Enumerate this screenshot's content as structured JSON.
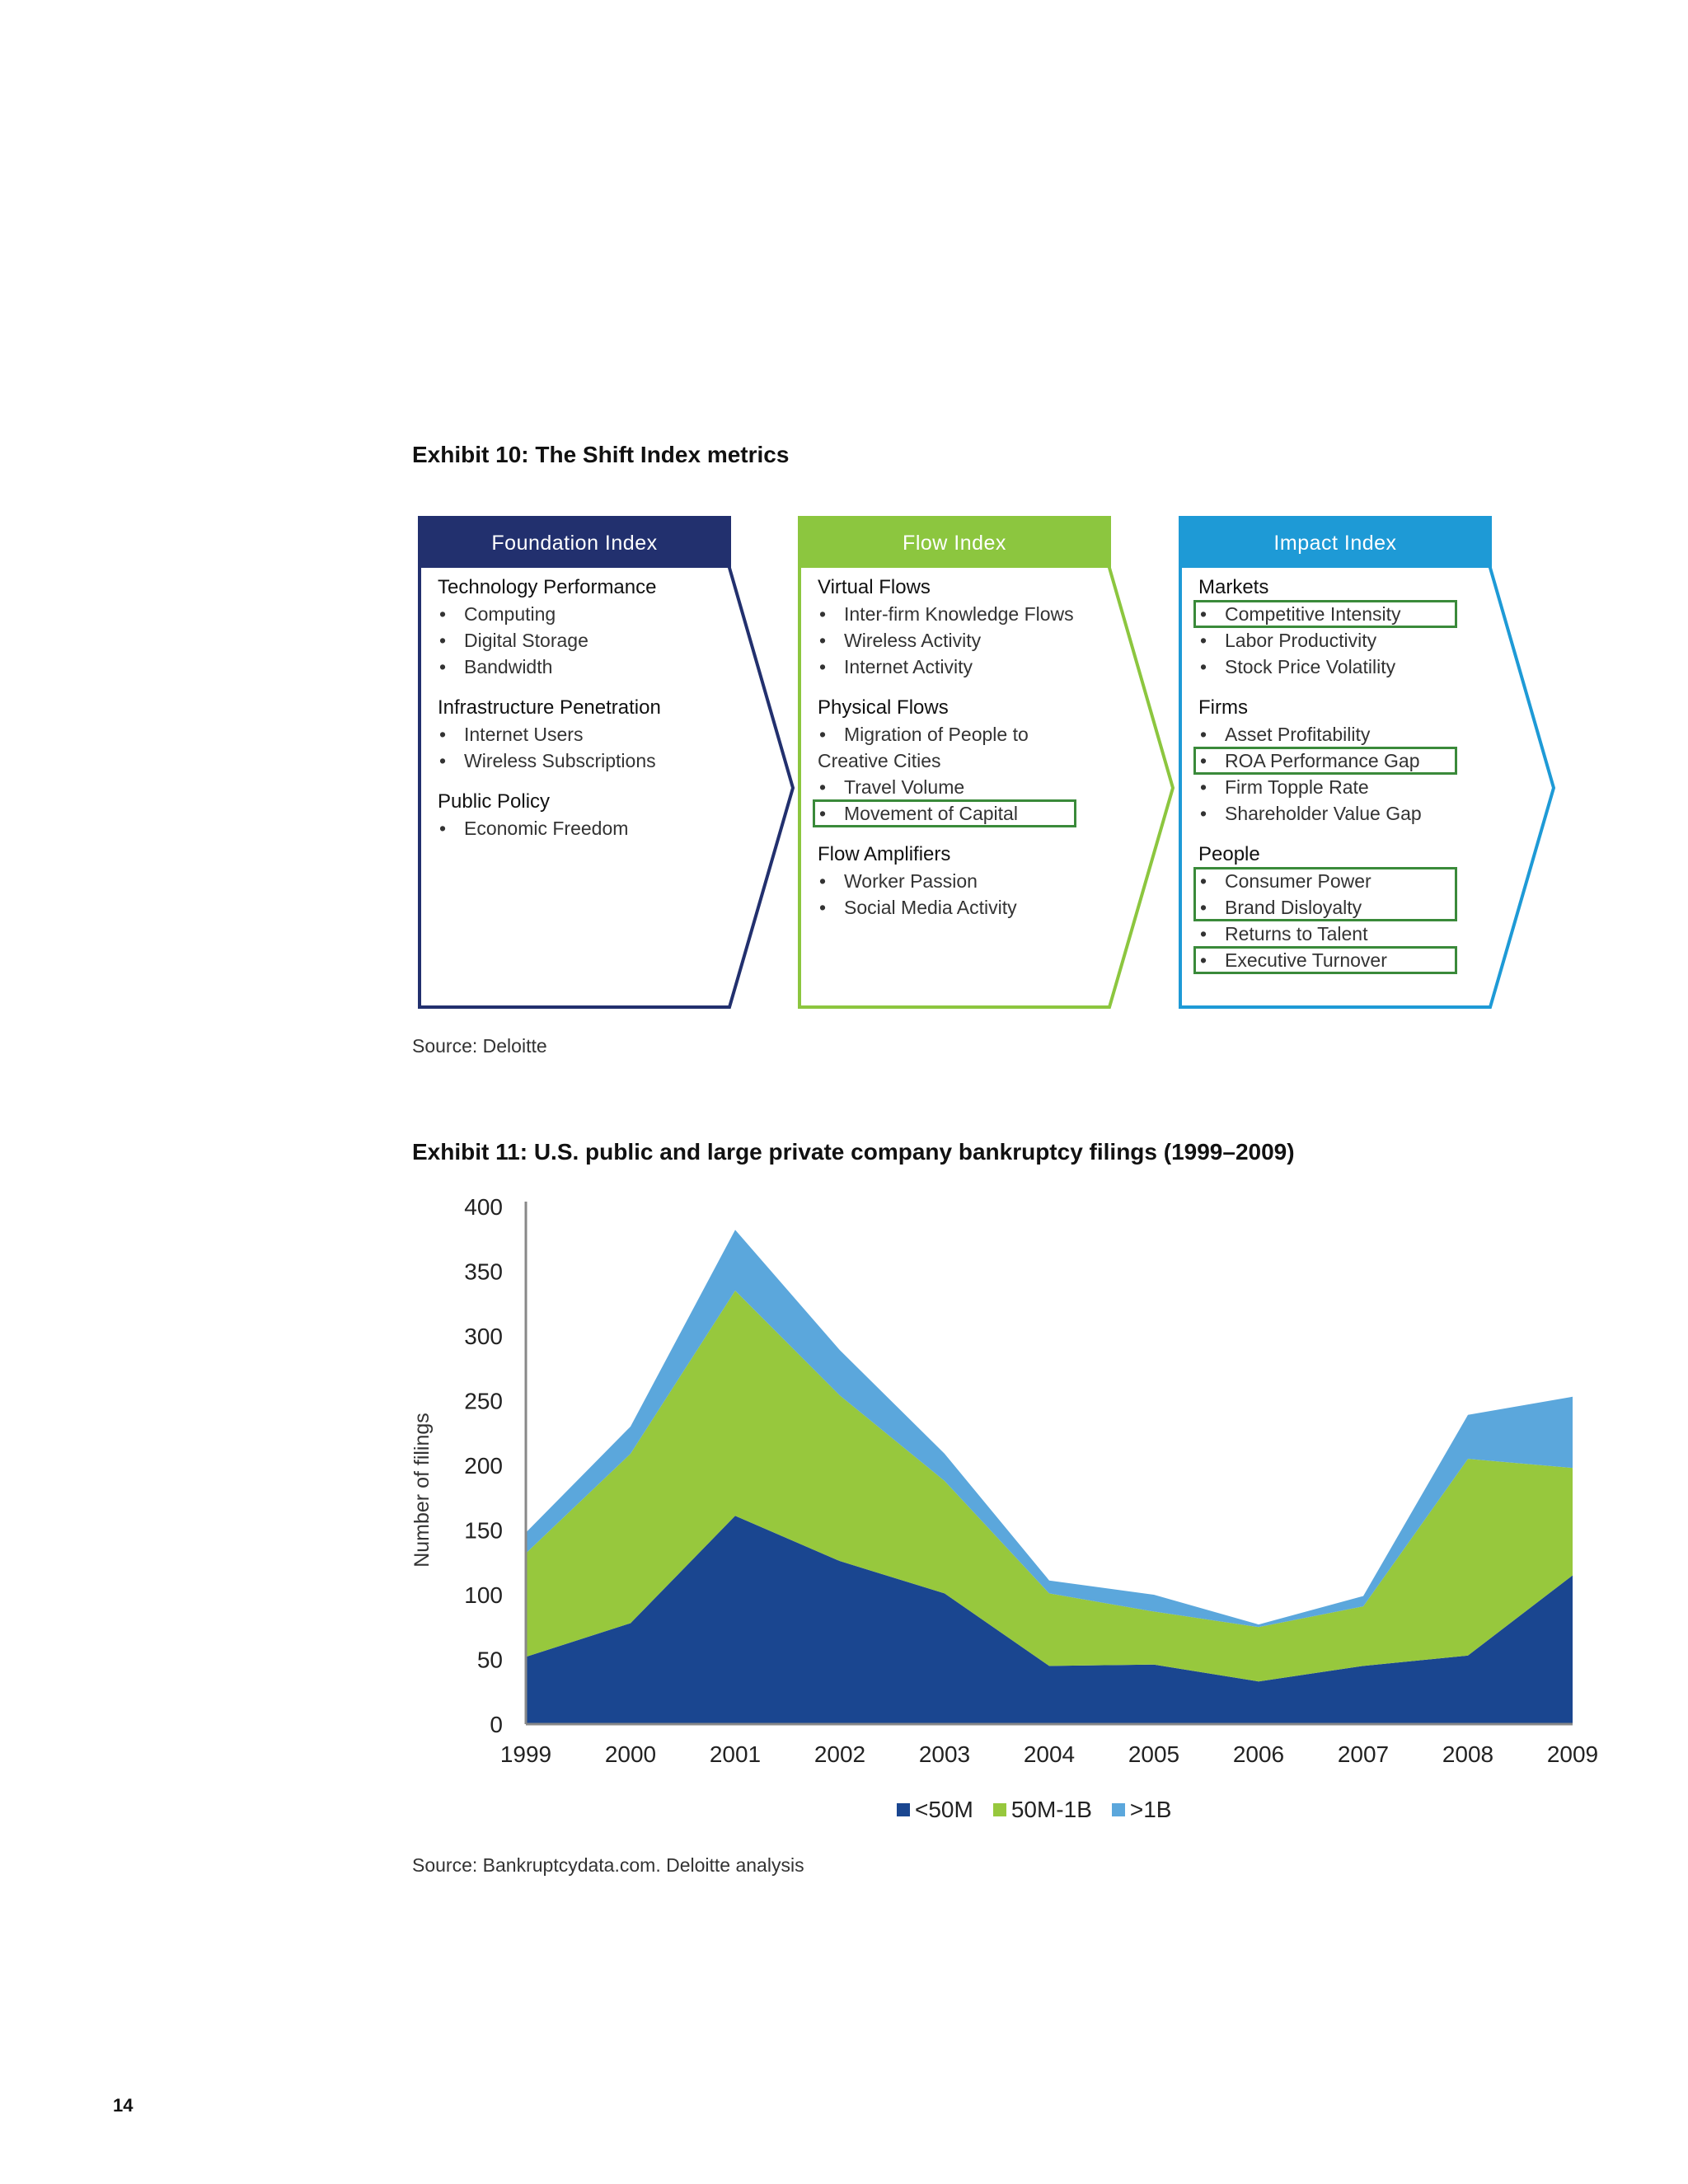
{
  "exhibit10": {
    "title": "Exhibit 10: The Shift Index metrics",
    "source": "Source: Deloitte",
    "panels": [
      {
        "header": "Foundation Index",
        "color": "#22306e",
        "sections": [
          {
            "title": "Technology Performance",
            "items": [
              "Computing",
              "Digital Storage",
              "Bandwidth"
            ]
          },
          {
            "title": "Infrastructure Penetration",
            "items": [
              "Internet Users",
              "Wireless Subscriptions"
            ]
          },
          {
            "title": "Public Policy",
            "items": [
              "Economic Freedom"
            ]
          }
        ]
      },
      {
        "header": "Flow Index",
        "color": "#8cc63f",
        "sections": [
          {
            "title": "Virtual Flows",
            "items": [
              "Inter-firm Knowledge Flows",
              "Wireless Activity",
              "Internet Activity"
            ]
          },
          {
            "title": "Physical Flows",
            "items": [
              "Migration of People to",
              "Creative Cities",
              "Travel Volume",
              "Movement of Capital"
            ]
          },
          {
            "title": "Flow Amplifiers",
            "items": [
              "Worker Passion",
              "Social Media Activity"
            ]
          }
        ]
      },
      {
        "header": "Impact Index",
        "color": "#1e9ad6",
        "sections": [
          {
            "title": "Markets",
            "items": [
              "Competitive Intensity",
              "Labor Productivity",
              "Stock Price Volatility"
            ]
          },
          {
            "title": "Firms",
            "items": [
              "Asset Profitability",
              "ROA Performance Gap",
              "Firm Topple Rate",
              "Shareholder Value Gap"
            ]
          },
          {
            "title": "People",
            "items": [
              "Consumer Power",
              "Brand Disloyalty",
              "Returns to Talent",
              "Executive Turnover"
            ]
          }
        ]
      }
    ],
    "bullet": "•"
  },
  "exhibit11": {
    "title": "Exhibit 11:  U.S. public and large private company bankruptcy filings (1999–2009)",
    "source": "Source: Bankruptcydata.com. Deloitte analysis"
  },
  "chart_data": {
    "type": "area",
    "stacked": true,
    "title": "Exhibit 11:  U.S. public and large private company bankruptcy filings (1999–2009)",
    "xlabel": "",
    "ylabel": "Number of filings",
    "ylim": [
      0,
      400
    ],
    "yticks": [
      0,
      50,
      100,
      150,
      200,
      250,
      300,
      350,
      400
    ],
    "categories": [
      "1999",
      "2000",
      "2001",
      "2002",
      "2003",
      "2004",
      "2005",
      "2006",
      "2007",
      "2008",
      "2009"
    ],
    "series": [
      {
        "name": "<50M",
        "color": "#1a4690",
        "values": [
          52,
          78,
          161,
          126,
          101,
          45,
          46,
          33,
          45,
          53,
          115
        ]
      },
      {
        "name": "50M-1B",
        "color": "#97c83d",
        "values": [
          80,
          131,
          174,
          128,
          87,
          56,
          41,
          42,
          46,
          152,
          83
        ]
      },
      {
        "name": ">1B",
        "color": "#5ba7dc",
        "values": [
          16,
          21,
          47,
          35,
          21,
          10,
          13,
          2,
          8,
          34,
          55
        ]
      }
    ],
    "legend_position": "bottom"
  },
  "page_number": "14"
}
